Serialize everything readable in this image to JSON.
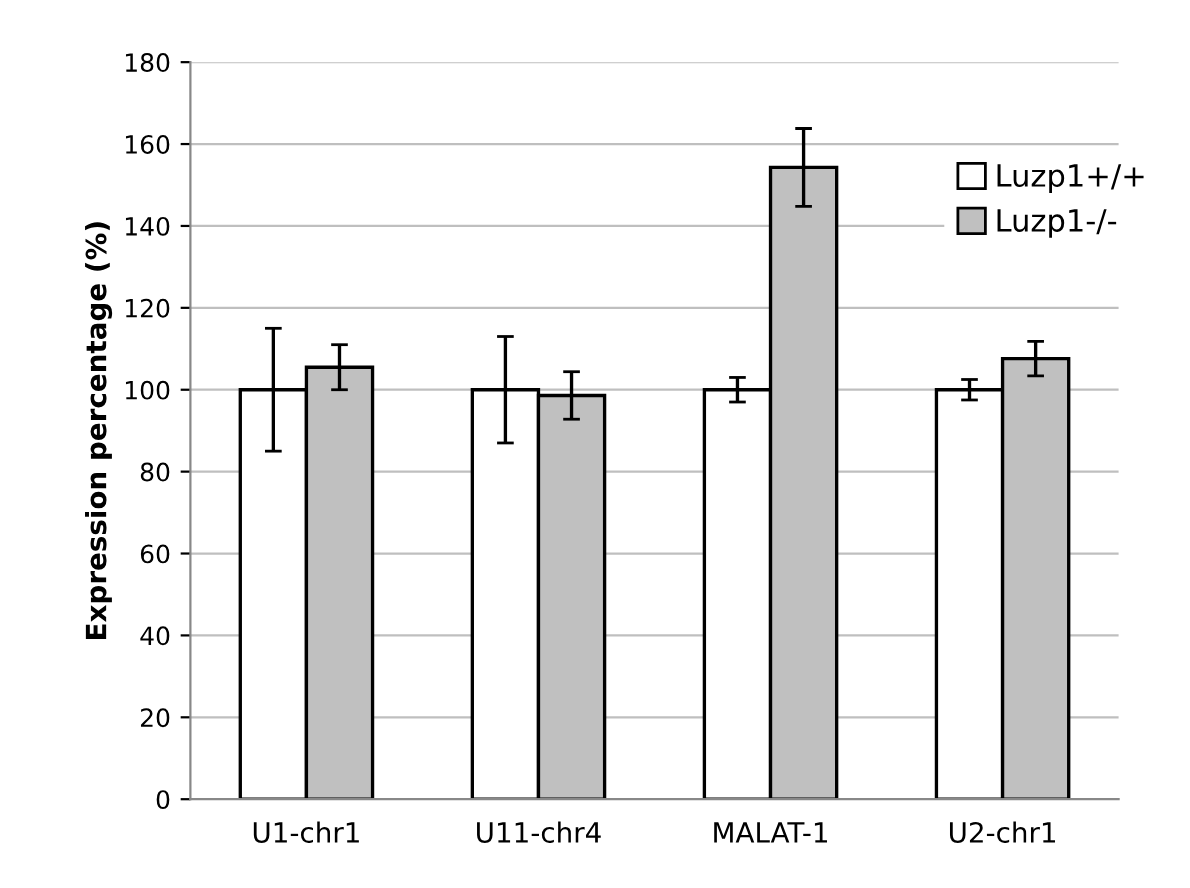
{
  "chart_data": {
    "type": "bar",
    "ylabel": "Expression percentage (%)",
    "categories": [
      "U1-chr1",
      "U11-chr4",
      "MALAT-1",
      "U2-chr1"
    ],
    "series": [
      {
        "name": "Luzp1+/+",
        "color": "#ffffff",
        "values": [
          100,
          100,
          100,
          100
        ],
        "errors": [
          15,
          13,
          3,
          2.5
        ]
      },
      {
        "name": "Luzp1-/-",
        "color": "#c0c0c0",
        "values": [
          105.5,
          98.6,
          154.3,
          107.6
        ],
        "errors": [
          5.5,
          5.8,
          9.5,
          4.2
        ]
      }
    ],
    "ylim": [
      0,
      180
    ],
    "yticks": [
      0,
      20,
      40,
      60,
      80,
      100,
      120,
      140,
      160,
      180
    ],
    "grid": "y",
    "legend": "top right"
  }
}
